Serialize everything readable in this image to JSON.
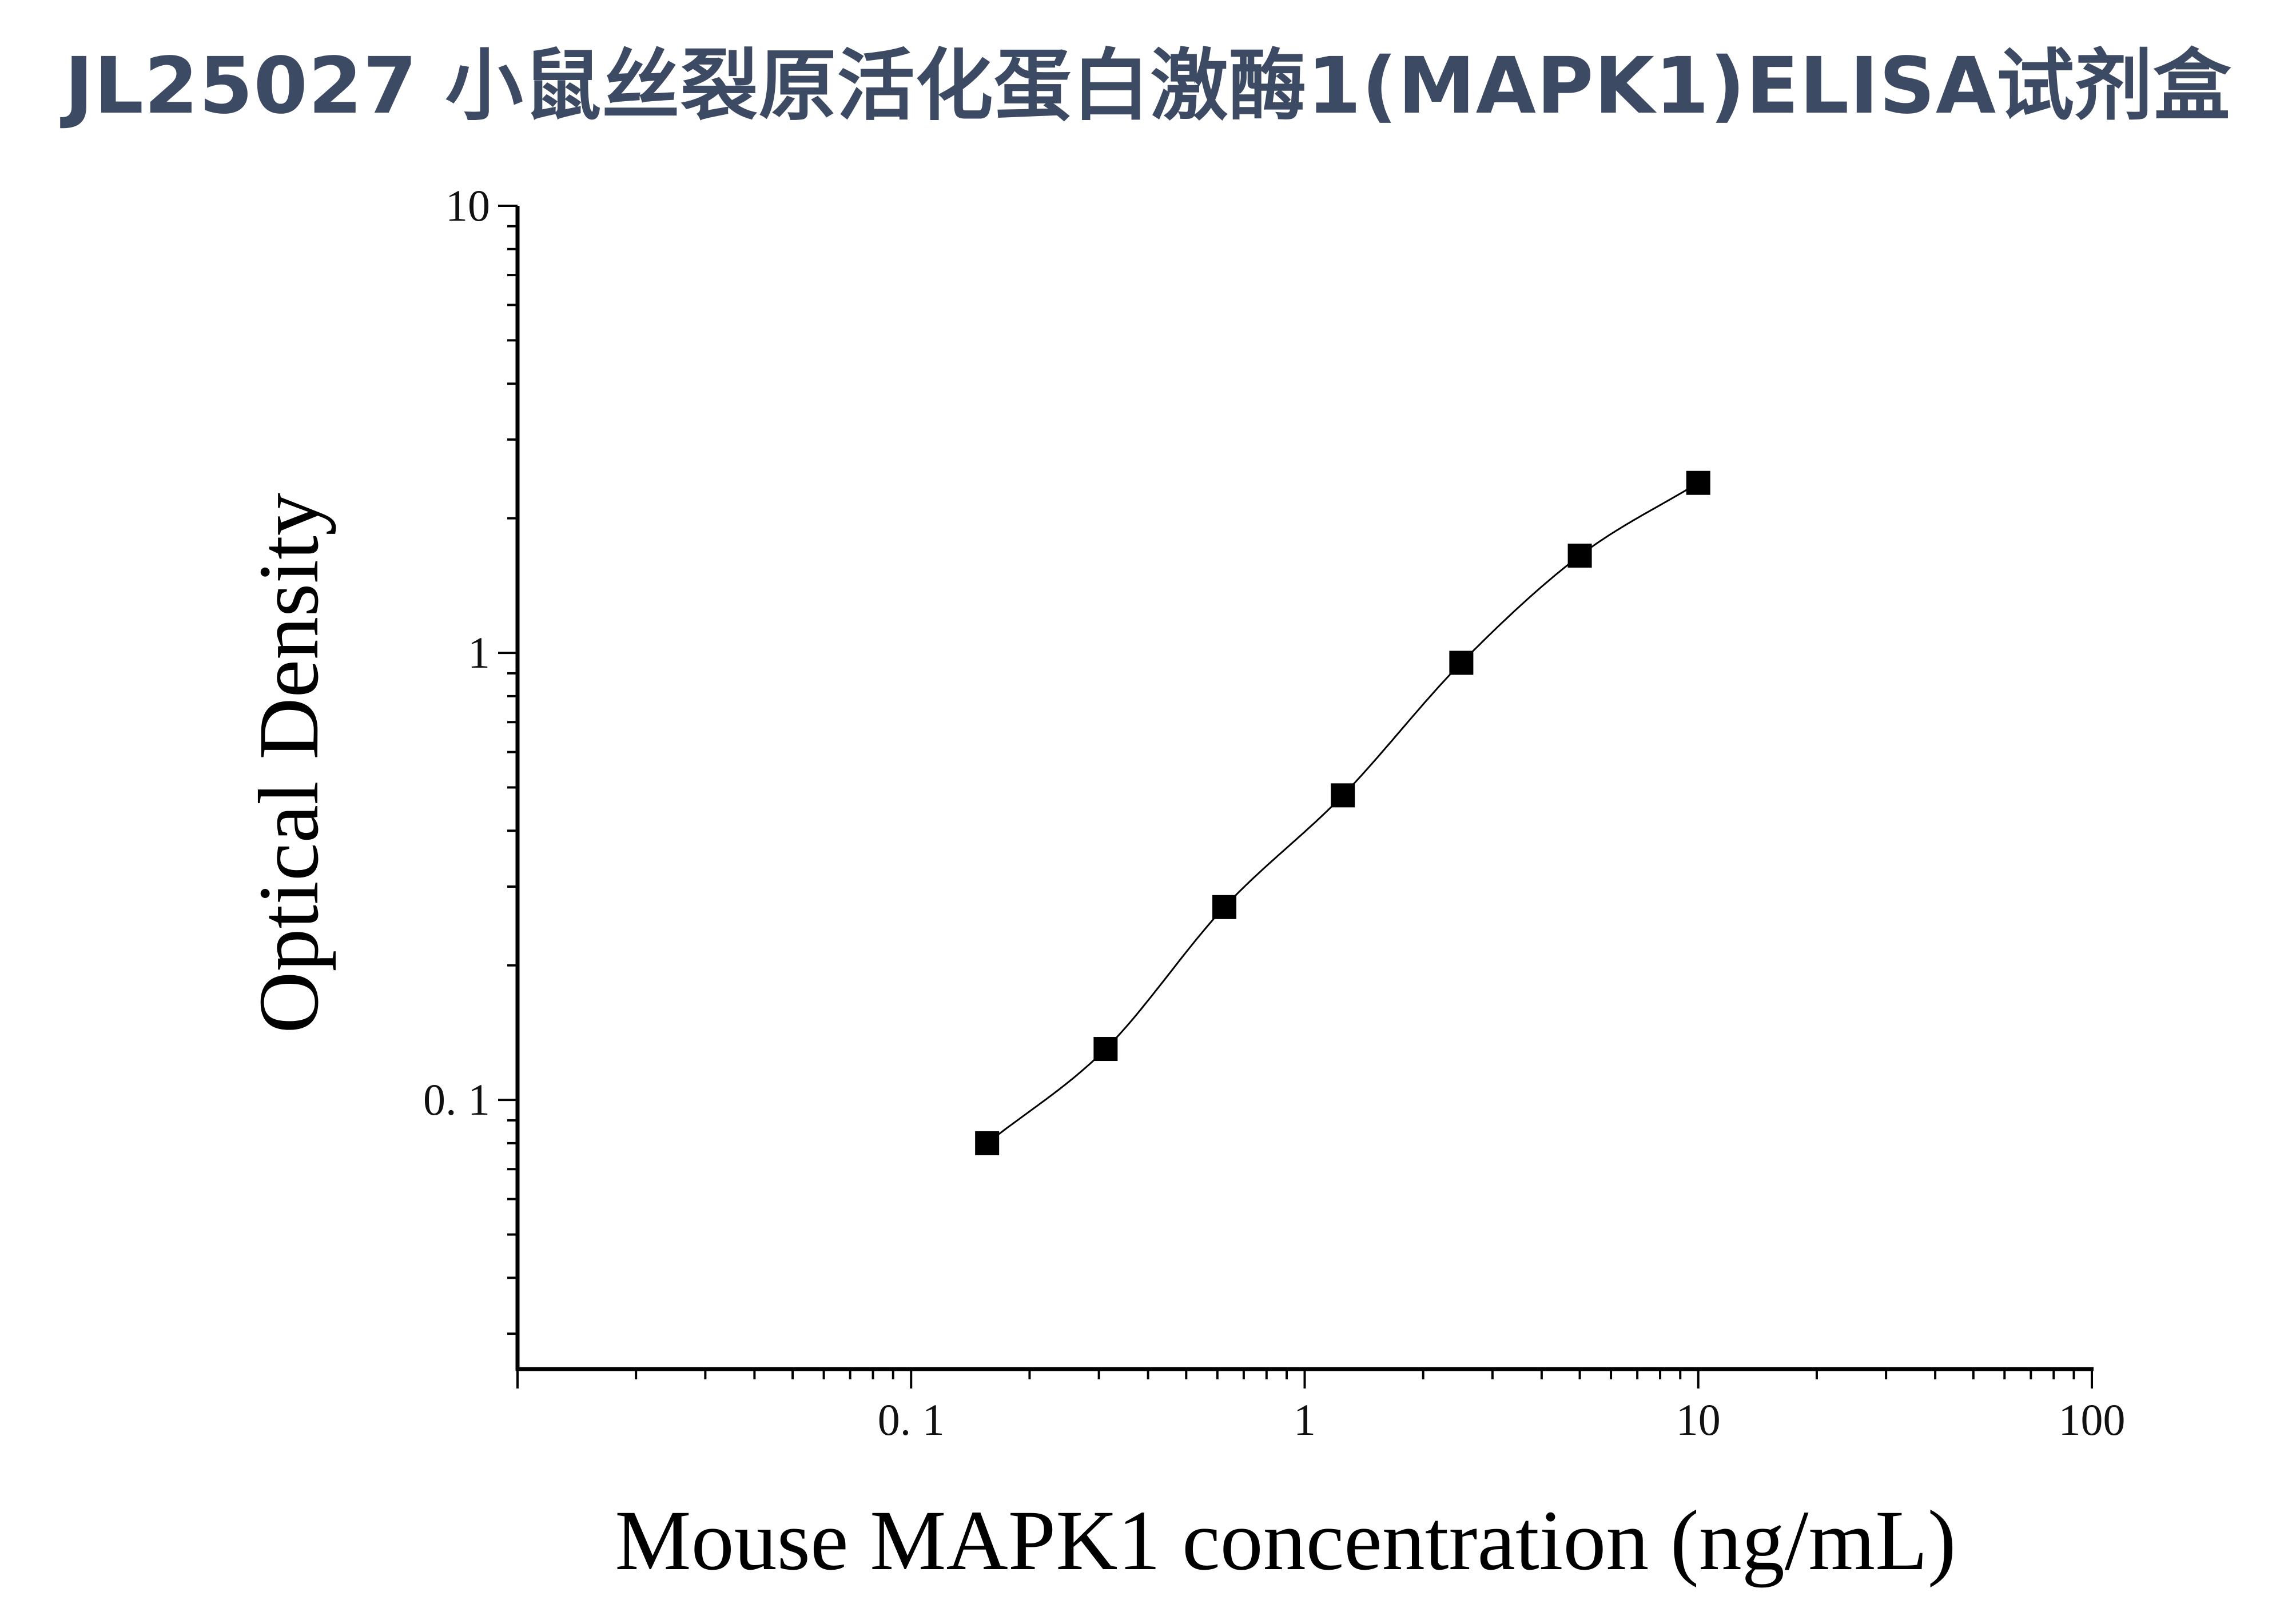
{
  "title": "JL25027 小鼠丝裂原活化蛋白激酶1(MAPK1)ELISA试剂盒",
  "chart_data": {
    "type": "scatter",
    "title": "JL25027 小鼠丝裂原活化蛋白激酶1(MAPK1)ELISA试剂盒",
    "xlabel": "Mouse MAPK1 concentration (ng/mL)",
    "ylabel": "Optical Density",
    "x_scale": "log",
    "y_scale": "log",
    "xlim": [
      0.01,
      100
    ],
    "ylim": [
      0.025,
      10
    ],
    "x_ticks": [
      {
        "value": 0.1,
        "label": "0. 1"
      },
      {
        "value": 1,
        "label": "1"
      },
      {
        "value": 10,
        "label": "10"
      },
      {
        "value": 100,
        "label": "100"
      }
    ],
    "y_ticks": [
      {
        "value": 0.1,
        "label": "0. 1"
      },
      {
        "value": 1,
        "label": "1"
      },
      {
        "value": 10,
        "label": "10"
      }
    ],
    "grid": false,
    "legend": "none",
    "series": [
      {
        "marker": "square",
        "color": "#000000",
        "fit_line": true,
        "x": [
          0.156,
          0.312,
          0.625,
          1.25,
          2.5,
          5,
          10
        ],
        "y": [
          0.08,
          0.13,
          0.27,
          0.48,
          0.95,
          1.65,
          2.4
        ]
      }
    ]
  }
}
